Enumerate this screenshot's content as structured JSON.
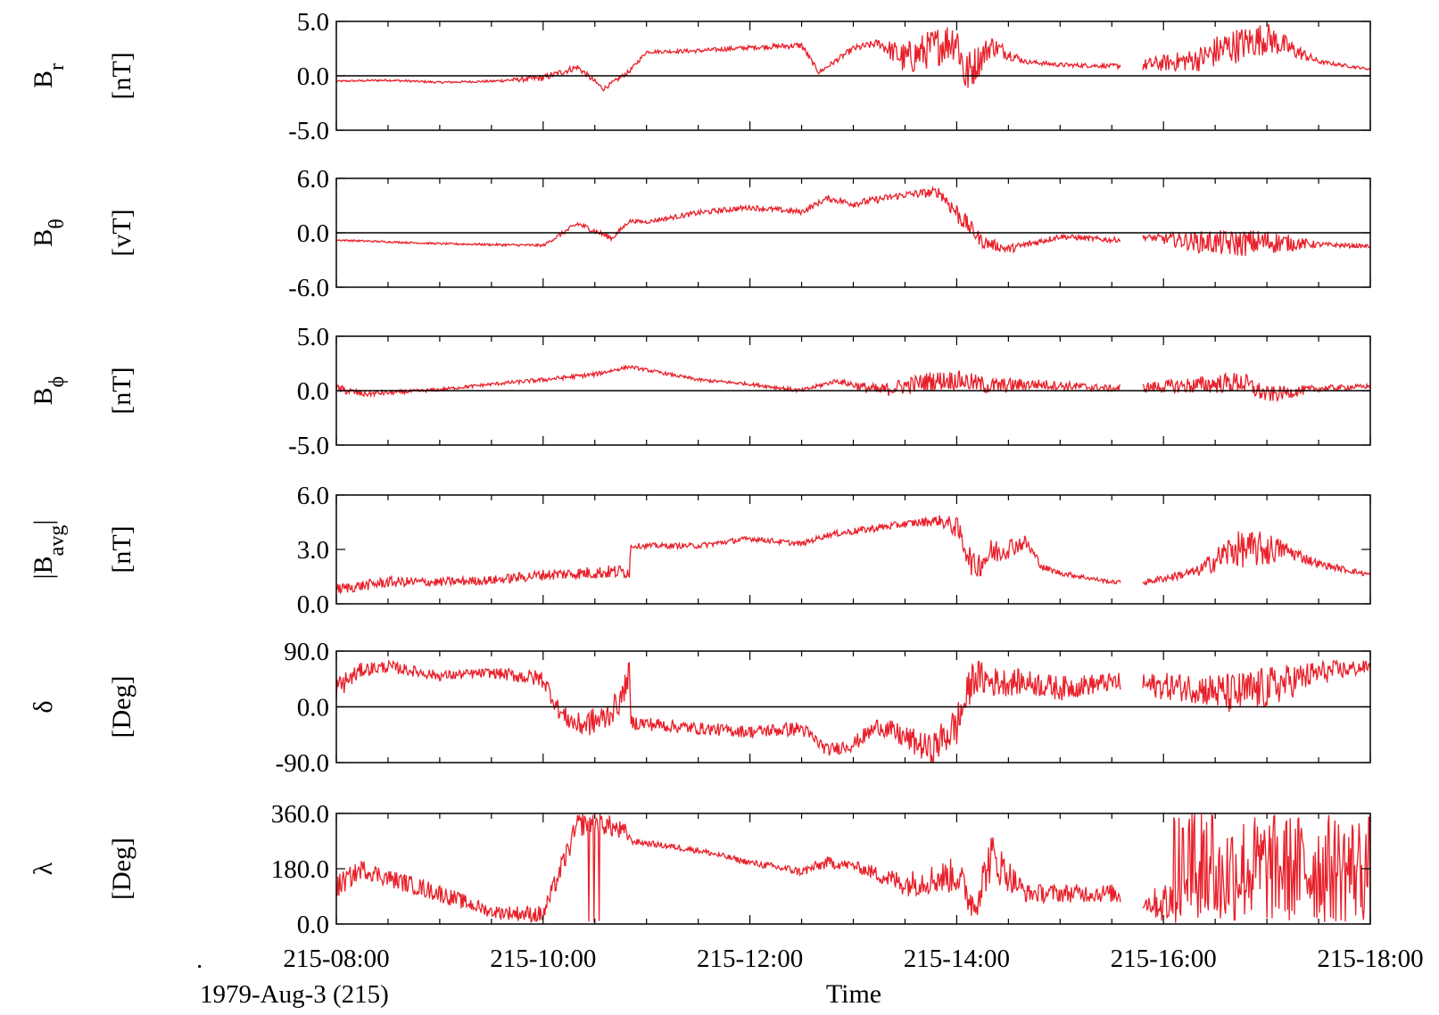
{
  "chart_data": {
    "type": "line",
    "shared_x": {
      "label": "Time",
      "start": "215-08:00",
      "end": "215-18:00",
      "tick_labels": [
        "215-08:00",
        "215-10:00",
        "215-12:00",
        "215-14:00",
        "215-16:00",
        "215-18:00"
      ],
      "data_gap": [
        "215-15:35",
        "215-15:48"
      ]
    },
    "date_label": "1979-Aug-3 (215)",
    "footer_mark": ".",
    "line_color": "#e8202a",
    "panels": [
      {
        "id": "br",
        "label_main": "B",
        "label_sub": "r",
        "unit": "[nT]",
        "ylim": [
          -5.0,
          5.0
        ],
        "tick_labels": [
          "5.0",
          "0.0",
          "-5.0"
        ],
        "zero_line": true,
        "times": [
          "08:00",
          "08:30",
          "09:00",
          "09:30",
          "10:00",
          "10:20",
          "10:35",
          "10:50",
          "11:00",
          "11:30",
          "12:00",
          "12:30",
          "12:40",
          "13:00",
          "13:15",
          "13:30",
          "14:00",
          "14:05",
          "14:20",
          "14:40",
          "15:00",
          "15:30",
          "15:50",
          "16:20",
          "16:35",
          "17:00",
          "17:30",
          "18:00"
        ],
        "values": [
          -0.5,
          -0.4,
          -0.6,
          -0.5,
          -0.2,
          0.8,
          -1.2,
          0.4,
          2.2,
          2.3,
          2.6,
          2.8,
          0.3,
          2.5,
          3.0,
          1.5,
          3.5,
          0.0,
          2.8,
          1.3,
          1.0,
          0.9,
          1.0,
          1.5,
          2.5,
          3.5,
          1.3,
          0.6
        ],
        "noise": [
          0.08,
          0.1,
          0.1,
          0.1,
          0.3,
          0.3,
          0.2,
          0.2,
          0.15,
          0.2,
          0.2,
          0.3,
          0.2,
          0.3,
          0.4,
          1.6,
          2.0,
          2.2,
          1.0,
          0.2,
          0.2,
          0.2,
          0.6,
          1.1,
          1.7,
          1.5,
          0.2,
          0.1
        ]
      },
      {
        "id": "btheta",
        "label_main": "B",
        "label_sub": "θ",
        "unit": "[vT]",
        "ylim": [
          -6.0,
          6.0
        ],
        "tick_labels": [
          "6.0",
          "0.0",
          "-6.0"
        ],
        "zero_line": true,
        "times": [
          "08:00",
          "09:00",
          "10:00",
          "10:20",
          "10:40",
          "10:50",
          "11:00",
          "11:30",
          "12:00",
          "12:30",
          "12:45",
          "13:00",
          "13:30",
          "13:50",
          "14:00",
          "14:15",
          "14:30",
          "15:00",
          "15:30",
          "15:50",
          "16:20",
          "16:40",
          "17:00",
          "17:30",
          "18:00"
        ],
        "values": [
          -0.8,
          -1.2,
          -1.4,
          1.0,
          -0.6,
          1.3,
          1.2,
          2.2,
          2.8,
          2.3,
          3.8,
          3.2,
          4.2,
          4.5,
          2.2,
          -1.0,
          -1.8,
          -0.4,
          -0.8,
          -0.5,
          -1.0,
          -1.2,
          -1.0,
          -1.3,
          -1.5
        ],
        "noise": [
          0.1,
          0.1,
          0.15,
          0.3,
          0.3,
          0.2,
          0.2,
          0.3,
          0.3,
          0.3,
          0.3,
          0.4,
          0.4,
          0.6,
          1.2,
          0.7,
          0.5,
          0.3,
          0.3,
          0.3,
          1.2,
          1.5,
          1.4,
          0.3,
          0.2
        ]
      },
      {
        "id": "bphi",
        "label_main": "B",
        "label_sub": "ϕ",
        "unit": "[nT]",
        "ylim": [
          -5.0,
          5.0
        ],
        "tick_labels": [
          "5.0",
          "0.0",
          "-5.0"
        ],
        "zero_line": true,
        "times": [
          "08:00",
          "08:15",
          "08:30",
          "09:00",
          "09:30",
          "10:00",
          "10:30",
          "10:50",
          "11:30",
          "12:00",
          "12:30",
          "12:50",
          "13:15",
          "13:45",
          "14:00",
          "14:20",
          "14:45",
          "15:30",
          "15:50",
          "16:20",
          "16:45",
          "17:00",
          "17:30",
          "18:00"
        ],
        "values": [
          0.2,
          -0.3,
          -0.2,
          0.1,
          0.6,
          1.0,
          1.5,
          2.2,
          1.0,
          0.6,
          0.0,
          0.9,
          0.0,
          0.9,
          1.0,
          0.4,
          0.6,
          0.2,
          0.3,
          0.5,
          0.8,
          -0.4,
          0.2,
          0.4
        ],
        "noise": [
          0.4,
          0.3,
          0.2,
          0.15,
          0.15,
          0.2,
          0.2,
          0.15,
          0.15,
          0.15,
          0.2,
          0.2,
          0.6,
          0.9,
          0.9,
          0.8,
          0.5,
          0.3,
          0.5,
          0.8,
          1.0,
          0.8,
          0.3,
          0.2
        ]
      },
      {
        "id": "bavg",
        "label_main": "|B",
        "label_sub": "avg",
        "label_suffix": "|",
        "unit": "[nT]",
        "ylim": [
          0.0,
          6.0
        ],
        "tick_labels": [
          "6.0",
          "3.0",
          "0.0"
        ],
        "zero_line": false,
        "times": [
          "08:00",
          "08:30",
          "09:00",
          "09:30",
          "10:00",
          "10:50",
          "10:51",
          "11:30",
          "12:00",
          "12:30",
          "12:45",
          "13:00",
          "13:30",
          "13:50",
          "14:00",
          "14:10",
          "14:20",
          "14:40",
          "14:50",
          "15:00",
          "15:30",
          "15:50",
          "16:20",
          "16:40",
          "17:00",
          "17:10",
          "17:30",
          "18:00"
        ],
        "values": [
          0.8,
          1.2,
          1.2,
          1.3,
          1.6,
          1.8,
          3.2,
          3.2,
          3.6,
          3.3,
          3.8,
          4.0,
          4.4,
          4.6,
          4.2,
          2.0,
          2.8,
          3.4,
          2.0,
          1.7,
          1.2,
          1.2,
          1.8,
          3.0,
          3.0,
          3.0,
          2.2,
          1.6
        ],
        "noise": [
          0.3,
          0.3,
          0.25,
          0.25,
          0.3,
          0.4,
          0.15,
          0.15,
          0.15,
          0.15,
          0.15,
          0.2,
          0.2,
          0.3,
          0.6,
          0.8,
          0.8,
          0.4,
          0.2,
          0.15,
          0.1,
          0.15,
          0.3,
          1.0,
          1.0,
          0.5,
          0.2,
          0.15
        ]
      },
      {
        "id": "delta",
        "label_main": "δ",
        "label_sub": "",
        "unit": "[Deg]",
        "ylim": [
          -90.0,
          90.0
        ],
        "tick_labels": [
          "90.0",
          "0.0",
          "-90.0"
        ],
        "zero_line": true,
        "times": [
          "08:00",
          "08:15",
          "08:30",
          "09:00",
          "09:30",
          "10:00",
          "10:10",
          "10:20",
          "10:35",
          "10:45",
          "10:50",
          "10:51",
          "11:30",
          "12:00",
          "12:30",
          "12:45",
          "13:00",
          "13:15",
          "13:30",
          "13:45",
          "14:00",
          "14:10",
          "14:20",
          "14:40",
          "15:00",
          "15:30",
          "15:50",
          "16:20",
          "16:40",
          "17:00",
          "17:30",
          "18:00"
        ],
        "values": [
          30,
          60,
          65,
          50,
          55,
          45,
          -10,
          -30,
          -20,
          10,
          55,
          -25,
          -35,
          -40,
          -35,
          -70,
          -60,
          -30,
          -50,
          -70,
          -30,
          50,
          40,
          40,
          30,
          40,
          35,
          30,
          20,
          30,
          55,
          65
        ],
        "noise": [
          20,
          12,
          10,
          8,
          8,
          15,
          15,
          20,
          25,
          20,
          20,
          12,
          10,
          10,
          12,
          10,
          12,
          15,
          20,
          25,
          35,
          30,
          25,
          20,
          20,
          15,
          20,
          25,
          35,
          35,
          20,
          10
        ]
      },
      {
        "id": "lambda",
        "label_main": "λ",
        "label_sub": "",
        "unit": "[Deg]",
        "ylim": [
          0.0,
          360.0
        ],
        "tick_labels": [
          "360.0",
          "180.0",
          "0.0"
        ],
        "zero_line": false,
        "times": [
          "08:00",
          "08:15",
          "08:30",
          "09:00",
          "09:30",
          "10:00",
          "10:20",
          "10:30",
          "10:50",
          "10:51",
          "11:30",
          "12:00",
          "12:30",
          "12:45",
          "13:00",
          "13:30",
          "14:00",
          "14:10",
          "14:20",
          "14:40",
          "15:00",
          "15:30",
          "15:50",
          "16:20",
          "16:40",
          "17:00",
          "17:30",
          "18:00"
        ],
        "values": [
          120,
          180,
          150,
          100,
          40,
          30,
          320,
          340,
          290,
          270,
          240,
          200,
          170,
          200,
          190,
          130,
          160,
          60,
          220,
          100,
          100,
          100,
          70,
          60,
          180,
          180,
          180,
          180
        ],
        "noise": [
          40,
          30,
          30,
          30,
          20,
          30,
          40,
          40,
          30,
          10,
          10,
          10,
          15,
          20,
          15,
          40,
          60,
          60,
          80,
          30,
          30,
          30,
          30,
          150,
          180,
          180,
          180,
          180
        ]
      }
    ]
  }
}
